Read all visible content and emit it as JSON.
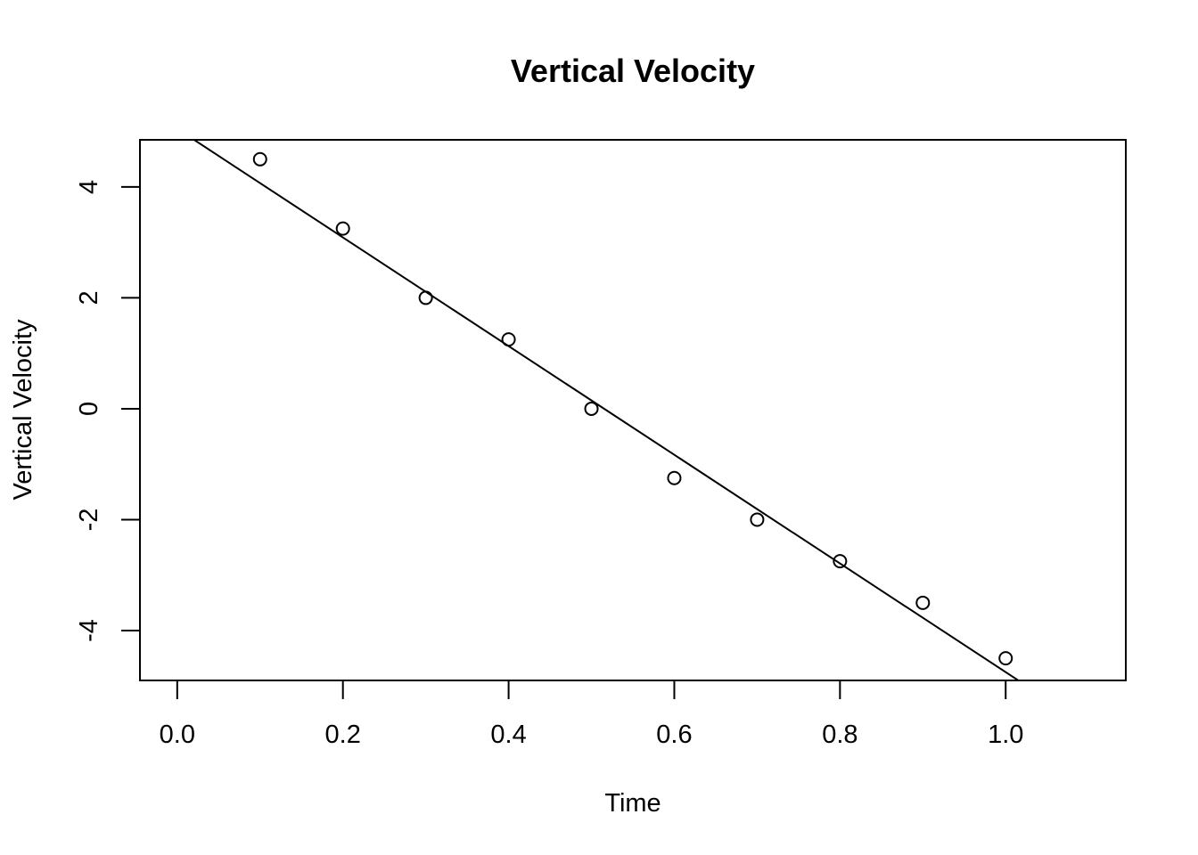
{
  "chart_data": {
    "type": "scatter",
    "title": "Vertical Velocity",
    "xlabel": "Time",
    "ylabel": "Vertical Velocity",
    "xlim": [
      -0.045,
      1.145
    ],
    "ylim": [
      -4.9,
      4.85
    ],
    "x_ticks": [
      0.0,
      0.2,
      0.4,
      0.6,
      0.8,
      1.0
    ],
    "x_tick_labels": [
      "0.0",
      "0.2",
      "0.4",
      "0.6",
      "0.8",
      "1.0"
    ],
    "y_ticks": [
      -4,
      -2,
      0,
      2,
      4
    ],
    "y_tick_labels": [
      "-4",
      "-2",
      "0",
      "2",
      "4"
    ],
    "grid": false,
    "series": [
      {
        "type": "scatter",
        "marker": "open-circle",
        "x": [
          0.1,
          0.2,
          0.3,
          0.4,
          0.5,
          0.6,
          0.7,
          0.8,
          0.9,
          1.0
        ],
        "y": [
          4.5,
          3.25,
          2.0,
          1.25,
          0.0,
          -1.25,
          -2.0,
          -2.75,
          -3.5,
          -4.5
        ]
      },
      {
        "type": "line",
        "fit": "least-squares",
        "intercept": 5.05,
        "slope": -9.8
      }
    ]
  }
}
